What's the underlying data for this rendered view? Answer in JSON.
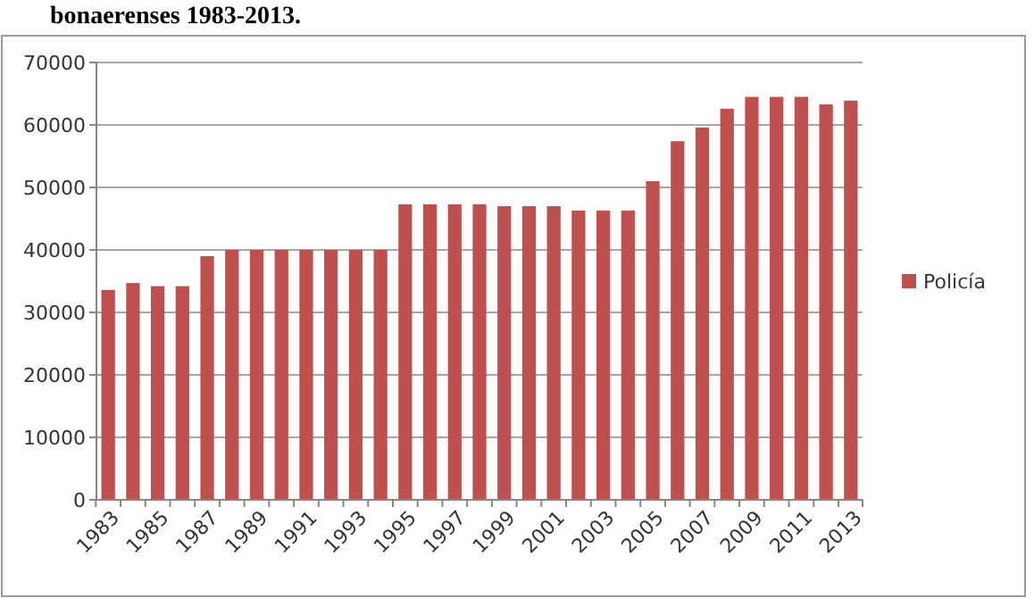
{
  "chart_data": {
    "type": "bar",
    "title": "bonaerenses 1983-2013.",
    "categories": [
      "1983",
      null,
      "1985",
      null,
      "1987",
      null,
      "1989",
      null,
      "1991",
      null,
      "1993",
      null,
      "1995",
      null,
      "1997",
      null,
      "1999",
      null,
      "2001",
      null,
      "2003",
      null,
      "2005",
      null,
      "2007",
      null,
      "2009",
      null,
      "2011",
      null,
      "2013"
    ],
    "series": [
      {
        "name": "Policía",
        "color": "#c0504d",
        "values": [
          33600,
          34700,
          34200,
          34200,
          39000,
          40000,
          40000,
          40000,
          40000,
          40000,
          40000,
          40000,
          47300,
          47300,
          47300,
          47300,
          47000,
          47000,
          47000,
          46300,
          46300,
          46300,
          51000,
          57400,
          59600,
          62600,
          64500,
          64500,
          64500,
          63300,
          63900
        ]
      }
    ],
    "ylim": [
      0,
      70000
    ],
    "yticks": [
      0,
      10000,
      20000,
      30000,
      40000,
      50000,
      60000,
      70000
    ],
    "grid": "y",
    "legend": "right"
  }
}
